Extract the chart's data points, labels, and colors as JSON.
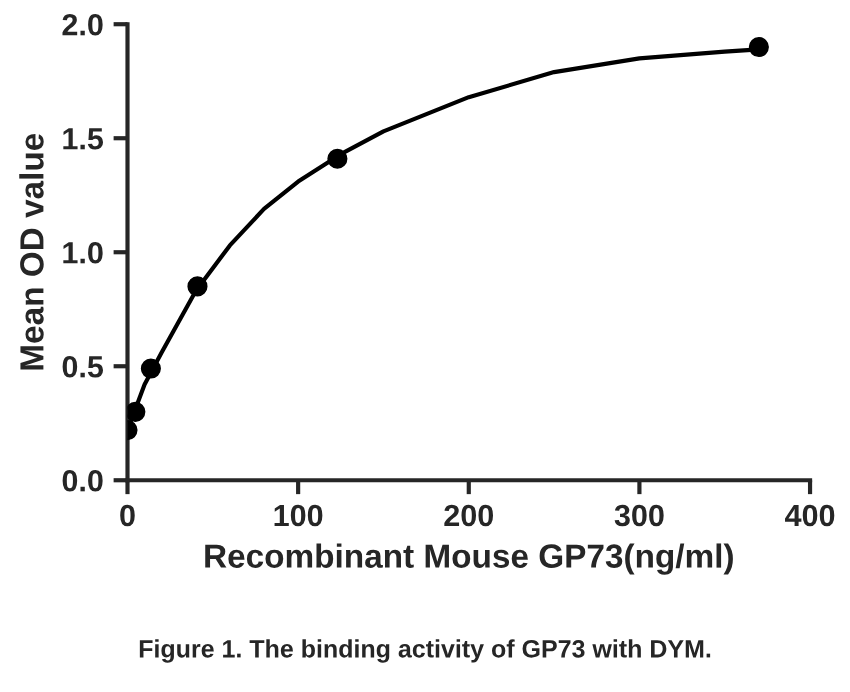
{
  "chart_data": {
    "type": "scatter",
    "xlabel": "Recombinant Mouse GP73(ng/ml)",
    "ylabel": "Mean OD value",
    "annotations": [
      "Figure 1. The binding activity of GP73 with DYM."
    ],
    "series": [
      {
        "color": "#000000",
        "marker": "circle",
        "x": [
          0,
          4.6,
          13.7,
          41,
          123,
          370
        ],
        "values": [
          0.22,
          0.3,
          0.49,
          0.85,
          1.41,
          1.9
        ]
      },
      {
        "type": "line",
        "color": "#000000",
        "marker": "none",
        "x": [
          0,
          10,
          20,
          40,
          60,
          80,
          100,
          125,
          150,
          200,
          250,
          300,
          350,
          370
        ],
        "values": [
          0.22,
          0.42,
          0.56,
          0.83,
          1.03,
          1.19,
          1.31,
          1.43,
          1.53,
          1.68,
          1.79,
          1.85,
          1.88,
          1.89
        ]
      }
    ],
    "xlim": [
      0,
      400
    ],
    "xticks": [
      0,
      100,
      200,
      300,
      400
    ],
    "ylim": [
      0,
      2.0
    ],
    "yticks": [
      {
        "value": 0,
        "label": "0.0"
      },
      {
        "value": 0.5,
        "label": "0.5"
      },
      {
        "value": 1.0,
        "label": "1.0"
      },
      {
        "value": 1.5,
        "label": "1.5"
      },
      {
        "value": 2.0,
        "label": "2.0"
      }
    ],
    "grid": false,
    "legend": false
  }
}
